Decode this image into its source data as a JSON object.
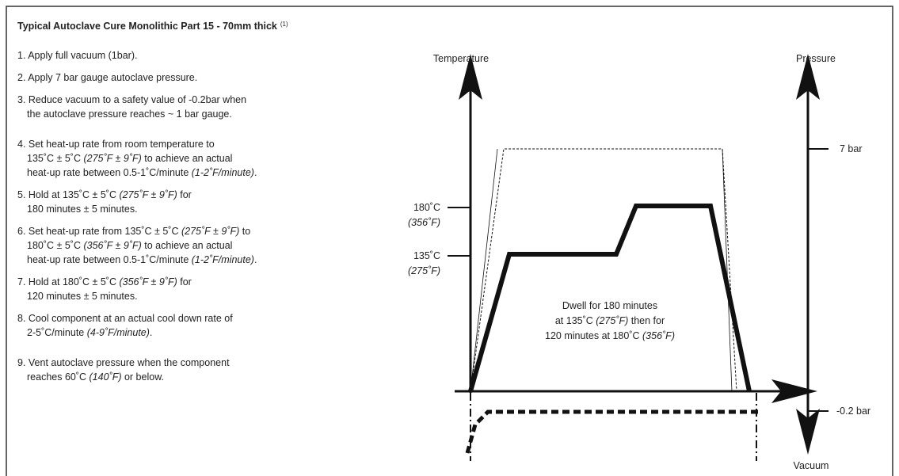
{
  "header": {
    "title": "Typical Autoclave Cure Monolithic Part 15 - 70mm thick",
    "note": "(1)"
  },
  "steps": [
    [
      [
        "1. Apply full vacuum (1bar)."
      ]
    ],
    [
      [
        "2. Apply 7 bar gauge autoclave pressure."
      ]
    ],
    [
      [
        "3. Reduce vacuum to a safety value of -0.2bar when"
      ],
      [
        "the autoclave pressure reaches ~ 1 bar gauge."
      ]
    ],
    [
      [
        "4. Set heat-up rate from room temperature to"
      ],
      [
        "135˚C ± 5˚C ",
        {
          "italic": "(275˚F ± 9˚F)"
        },
        " to achieve an actual"
      ],
      [
        "heat-up rate between 0.5-1˚C/minute ",
        {
          "italic": "(1-2˚F/minute)"
        },
        "."
      ]
    ],
    [
      [
        "5. Hold at 135˚C ± 5˚C ",
        {
          "italic": "(275˚F ± 9˚F)"
        },
        " for"
      ],
      [
        "180 minutes ± 5 minutes."
      ]
    ],
    [
      [
        "6. Set heat-up rate from 135˚C ± 5˚C ",
        {
          "italic": "(275˚F ± 9˚F)"
        },
        " to"
      ],
      [
        "180˚C ± 5˚C ",
        {
          "italic": "(356˚F ± 9˚F)"
        },
        " to achieve an actual"
      ],
      [
        "heat-up rate between 0.5-1˚C/minute ",
        {
          "italic": "(1-2˚F/minute)"
        },
        "."
      ]
    ],
    [
      [
        "7. Hold at 180˚C ± 5˚C ",
        {
          "italic": "(356˚F ± 9˚F)"
        },
        " for"
      ],
      [
        "120 minutes ± 5 minutes."
      ]
    ],
    [
      [
        "8. Cool component at an actual cool down rate of"
      ],
      [
        "2-5˚C/minute ",
        {
          "italic": "(4-9˚F/minute)"
        },
        "."
      ]
    ],
    [
      [
        "9. Vent autoclave pressure when the component"
      ],
      [
        "reaches 60˚C ",
        {
          "italic": "(140˚F)"
        },
        " or below."
      ]
    ]
  ],
  "diagram": {
    "temperature_axis": "Temperature",
    "pressure_axis": "Pressure",
    "vacuum_axis": "Vacuum",
    "pressure_high": "7 bar",
    "pressure_low": "-0.2 bar",
    "temp_high": "180˚C",
    "temp_high_f": "(356˚F)",
    "temp_low": "135˚C",
    "temp_low_f": "(275˚F)",
    "dwell": [
      [
        "Dwell for 180 minutes"
      ],
      [
        "at 135˚C ",
        {
          "italic": "(275˚F)"
        },
        " then for"
      ],
      [
        "120 minutes at 180˚C ",
        {
          "italic": "(356˚F)"
        }
      ]
    ]
  }
}
